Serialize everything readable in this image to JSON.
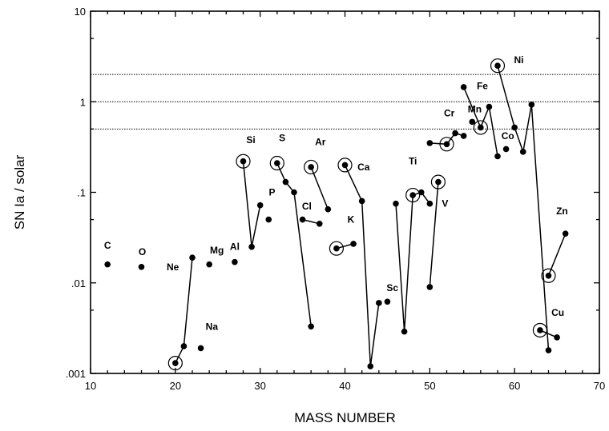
{
  "chart_data": {
    "type": "scatter",
    "xlabel": "MASS NUMBER",
    "ylabel": "SN Ia / solar",
    "xlim": [
      10,
      70
    ],
    "ylim": [
      0.001,
      10
    ],
    "yscale": "log",
    "xticks": [
      {
        "value": 10,
        "label": "10"
      },
      {
        "value": 20,
        "label": "20"
      },
      {
        "value": 30,
        "label": "30"
      },
      {
        "value": 40,
        "label": "40"
      },
      {
        "value": 50,
        "label": "50"
      },
      {
        "value": 60,
        "label": "60"
      },
      {
        "value": 70,
        "label": "70"
      }
    ],
    "yticks": [
      {
        "value": 0.001,
        "label": ".001"
      },
      {
        "value": 0.01,
        "label": ".01"
      },
      {
        "value": 0.1,
        "label": ".1"
      },
      {
        "value": 1,
        "label": "1"
      },
      {
        "value": 10,
        "label": "10"
      }
    ],
    "reference_lines": [
      2,
      1,
      0.5
    ],
    "elements": [
      {
        "element": "C",
        "isotopes": [
          {
            "x": 12,
            "y": 0.016,
            "dominant": false
          }
        ]
      },
      {
        "element": "O",
        "isotopes": [
          {
            "x": 16,
            "y": 0.015,
            "dominant": false
          }
        ]
      },
      {
        "element": "Ne",
        "isotopes": [
          {
            "x": 20,
            "y": 0.0013,
            "dominant": true
          },
          {
            "x": 21,
            "y": 0.002,
            "dominant": false
          },
          {
            "x": 22,
            "y": 0.019,
            "dominant": false
          }
        ]
      },
      {
        "element": "Na",
        "isotopes": [
          {
            "x": 23,
            "y": 0.0019,
            "dominant": false
          }
        ]
      },
      {
        "element": "Mg",
        "isotopes": [
          {
            "x": 24,
            "y": 0.016,
            "dominant": false
          }
        ]
      },
      {
        "element": "Al",
        "isotopes": [
          {
            "x": 27,
            "y": 0.017,
            "dominant": false
          }
        ]
      },
      {
        "element": "Si",
        "isotopes": [
          {
            "x": 28,
            "y": 0.22,
            "dominant": true
          },
          {
            "x": 29,
            "y": 0.025,
            "dominant": false
          },
          {
            "x": 30,
            "y": 0.072,
            "dominant": false
          }
        ]
      },
      {
        "element": "P",
        "isotopes": [
          {
            "x": 31,
            "y": 0.05,
            "dominant": false
          }
        ]
      },
      {
        "element": "S",
        "isotopes": [
          {
            "x": 32,
            "y": 0.21,
            "dominant": true
          },
          {
            "x": 33,
            "y": 0.13,
            "dominant": false
          },
          {
            "x": 34,
            "y": 0.1,
            "dominant": false
          },
          {
            "x": 36,
            "y": 0.0033,
            "dominant": false
          }
        ]
      },
      {
        "element": "Cl",
        "isotopes": [
          {
            "x": 35,
            "y": 0.05,
            "dominant": false
          },
          {
            "x": 37,
            "y": 0.045,
            "dominant": false
          }
        ]
      },
      {
        "element": "Ar",
        "isotopes": [
          {
            "x": 36,
            "y": 0.19,
            "dominant": true
          },
          {
            "x": 38,
            "y": 0.065,
            "dominant": false
          }
        ]
      },
      {
        "element": "K",
        "isotopes": [
          {
            "x": 39,
            "y": 0.024,
            "dominant": true
          },
          {
            "x": 41,
            "y": 0.027,
            "dominant": false
          }
        ]
      },
      {
        "element": "Ca",
        "isotopes": [
          {
            "x": 40,
            "y": 0.2,
            "dominant": true
          },
          {
            "x": 42,
            "y": 0.08,
            "dominant": false
          },
          {
            "x": 43,
            "y": 0.0012,
            "dominant": false
          },
          {
            "x": 44,
            "y": 0.006,
            "dominant": false
          }
        ]
      },
      {
        "element": "Sc",
        "isotopes": [
          {
            "x": 45,
            "y": 0.0062,
            "dominant": false
          }
        ]
      },
      {
        "element": "Ti",
        "isotopes": [
          {
            "x": 46,
            "y": 0.075,
            "dominant": false
          },
          {
            "x": 47,
            "y": 0.0029,
            "dominant": false
          },
          {
            "x": 48,
            "y": 0.093,
            "dominant": true
          },
          {
            "x": 49,
            "y": 0.1,
            "dominant": false
          },
          {
            "x": 50,
            "y": 0.075,
            "dominant": false
          }
        ]
      },
      {
        "element": "V",
        "isotopes": [
          {
            "x": 50,
            "y": 0.009,
            "dominant": false
          },
          {
            "x": 51,
            "y": 0.13,
            "dominant": true
          }
        ]
      },
      {
        "element": "Cr",
        "isotopes": [
          {
            "x": 50,
            "y": 0.35,
            "dominant": false
          },
          {
            "x": 52,
            "y": 0.34,
            "dominant": true
          },
          {
            "x": 53,
            "y": 0.45,
            "dominant": false
          },
          {
            "x": 54,
            "y": 0.42,
            "dominant": false
          }
        ]
      },
      {
        "element": "Mn",
        "isotopes": [
          {
            "x": 55,
            "y": 0.6,
            "dominant": false
          }
        ]
      },
      {
        "element": "Fe",
        "isotopes": [
          {
            "x": 54,
            "y": 1.45,
            "dominant": false
          },
          {
            "x": 56,
            "y": 0.52,
            "dominant": true
          },
          {
            "x": 57,
            "y": 0.88,
            "dominant": false
          },
          {
            "x": 58,
            "y": 0.25,
            "dominant": false
          }
        ]
      },
      {
        "element": "Co",
        "isotopes": [
          {
            "x": 59,
            "y": 0.3,
            "dominant": false
          }
        ]
      },
      {
        "element": "Ni",
        "isotopes": [
          {
            "x": 58,
            "y": 2.5,
            "dominant": true
          },
          {
            "x": 60,
            "y": 0.52,
            "dominant": false
          },
          {
            "x": 61,
            "y": 0.28,
            "dominant": false
          },
          {
            "x": 62,
            "y": 0.93,
            "dominant": false
          },
          {
            "x": 64,
            "y": 0.0018,
            "dominant": false
          }
        ]
      },
      {
        "element": "Cu",
        "isotopes": [
          {
            "x": 63,
            "y": 0.003,
            "dominant": true
          },
          {
            "x": 65,
            "y": 0.0025,
            "dominant": false
          }
        ]
      },
      {
        "element": "Zn",
        "isotopes": [
          {
            "x": 64,
            "y": 0.012,
            "dominant": true
          },
          {
            "x": 66,
            "y": 0.035,
            "dominant": false
          }
        ]
      }
    ],
    "point_labels": [
      {
        "text": "C",
        "x": 12,
        "y": 0.026
      },
      {
        "text": "O",
        "x": 16.1,
        "y": 0.022
      },
      {
        "text": "Ne",
        "x": 19.7,
        "y": 0.015
      },
      {
        "text": "Na",
        "x": 24.3,
        "y": 0.0033
      },
      {
        "text": "Mg",
        "x": 24.9,
        "y": 0.023
      },
      {
        "text": "Al",
        "x": 27,
        "y": 0.025
      },
      {
        "text": "Si",
        "x": 28.9,
        "y": 0.38
      },
      {
        "text": "P",
        "x": 31.4,
        "y": 0.1
      },
      {
        "text": "S",
        "x": 32.6,
        "y": 0.4
      },
      {
        "text": "Cl",
        "x": 35.5,
        "y": 0.07
      },
      {
        "text": "Ar",
        "x": 37.1,
        "y": 0.36
      },
      {
        "text": "K",
        "x": 40.7,
        "y": 0.05
      },
      {
        "text": "Ca",
        "x": 42.2,
        "y": 0.19
      },
      {
        "text": "Sc",
        "x": 45.6,
        "y": 0.0088
      },
      {
        "text": "Ti",
        "x": 48,
        "y": 0.22
      },
      {
        "text": "V",
        "x": 51.8,
        "y": 0.075
      },
      {
        "text": "Cr",
        "x": 52.3,
        "y": 0.75
      },
      {
        "text": "Mn",
        "x": 55.3,
        "y": 0.83
      },
      {
        "text": "Fe",
        "x": 56.2,
        "y": 1.5
      },
      {
        "text": "Co",
        "x": 59.2,
        "y": 0.42
      },
      {
        "text": "Ni",
        "x": 60.5,
        "y": 2.9
      },
      {
        "text": "Zn",
        "x": 65.6,
        "y": 0.062
      },
      {
        "text": "Cu",
        "x": 65.1,
        "y": 0.0047
      }
    ]
  }
}
